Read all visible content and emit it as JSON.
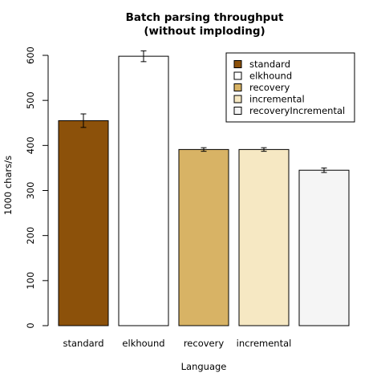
{
  "chart_data": {
    "type": "bar",
    "title": [
      "Batch parsing throughput",
      "(without imploding)"
    ],
    "xlabel": "Language",
    "ylabel": "1000 chars/s",
    "ylim": [
      0,
      600
    ],
    "yticks": [
      0,
      100,
      200,
      300,
      400,
      500,
      600
    ],
    "grid": false,
    "legend_position": "top-right",
    "series": [
      {
        "name": "standard",
        "value": 455,
        "error": 15,
        "color": "#8c510a",
        "tick_label": "standard"
      },
      {
        "name": "elkhound",
        "value": 598,
        "error": 12,
        "color": "#ffffff",
        "tick_label": "elkhound"
      },
      {
        "name": "recovery",
        "value": 391,
        "error": 4,
        "color": "#d8b365",
        "tick_label": "recovery"
      },
      {
        "name": "incremental",
        "value": 391,
        "error": 4,
        "color": "#f6e8c3",
        "tick_label": "incremental"
      },
      {
        "name": "recoveryIncremental",
        "value": 345,
        "error": 5,
        "color": "#f5f5f5",
        "tick_label": ""
      }
    ]
  }
}
